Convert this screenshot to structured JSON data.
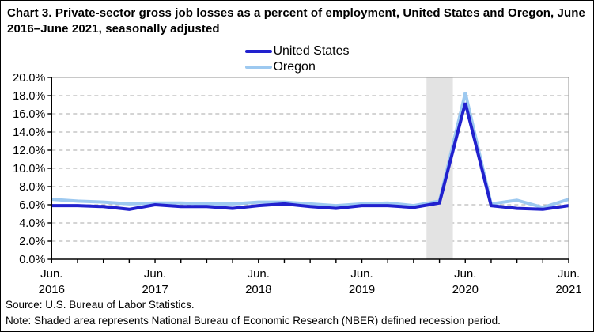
{
  "title": "Chart 3. Private-sector gross job losses as a percent of employment, United States and Oregon, June 2016–June 2021, seasonally adjusted",
  "legend": {
    "items": [
      {
        "label": "United States",
        "color": "#2121CE"
      },
      {
        "label": "Oregon",
        "color": "#9DC9F0"
      }
    ]
  },
  "source": "Source: U.S. Bureau of Labor Statistics.",
  "note": "Note: Shaded area represents National Bureau of Economic Research (NBER) defined recession period.",
  "chart_data": {
    "type": "line",
    "title": "Chart 3. Private-sector gross job losses as a percent of employment, United States and Oregon, June 2016–June 2021, seasonally adjusted",
    "x_categories": [
      "Jun 2016",
      "Sep 2016",
      "Dec 2016",
      "Mar 2017",
      "Jun 2017",
      "Sep 2017",
      "Dec 2017",
      "Mar 2018",
      "Jun 2018",
      "Sep 2018",
      "Dec 2018",
      "Mar 2019",
      "Jun 2019",
      "Sep 2019",
      "Dec 2019",
      "Mar 2020",
      "Jun 2020",
      "Sep 2020",
      "Dec 2020",
      "Mar 2021",
      "Jun 2021"
    ],
    "series": [
      {
        "name": "United States",
        "color": "#2121CE",
        "values": [
          5.9,
          5.9,
          5.8,
          5.5,
          6.0,
          5.8,
          5.8,
          5.6,
          5.9,
          6.1,
          5.8,
          5.6,
          5.9,
          5.9,
          5.7,
          6.2,
          17.2,
          5.9,
          5.6,
          5.5,
          5.9
        ]
      },
      {
        "name": "Oregon",
        "color": "#9DC9F0",
        "values": [
          6.6,
          6.4,
          6.3,
          6.1,
          6.2,
          6.2,
          6.1,
          6.1,
          6.3,
          6.3,
          6.1,
          5.9,
          6.1,
          6.2,
          5.9,
          6.4,
          18.3,
          6.1,
          6.5,
          5.7,
          6.6
        ]
      }
    ],
    "ylim": [
      0,
      20
    ],
    "y_tick_step": 2,
    "y_tick_suffix": "%",
    "x_major_ticks": [
      {
        "month": "Jun.",
        "year": "2016",
        "index": 0
      },
      {
        "month": "Jun.",
        "year": "2017",
        "index": 4
      },
      {
        "month": "Jun.",
        "year": "2018",
        "index": 8
      },
      {
        "month": "Jun.",
        "year": "2019",
        "index": 12
      },
      {
        "month": "Jun.",
        "year": "2020",
        "index": 16
      },
      {
        "month": "Jun.",
        "year": "2021",
        "index": 20
      }
    ],
    "recession_band": {
      "start_index": 14.5,
      "end_index": 15.52,
      "color": "#E3E3E3"
    },
    "grid": {
      "horizontal": "dashed",
      "color": "#A9A9A9"
    },
    "legend_position": "top-center",
    "axis_color": "#000000",
    "frame_color": "#909090"
  }
}
